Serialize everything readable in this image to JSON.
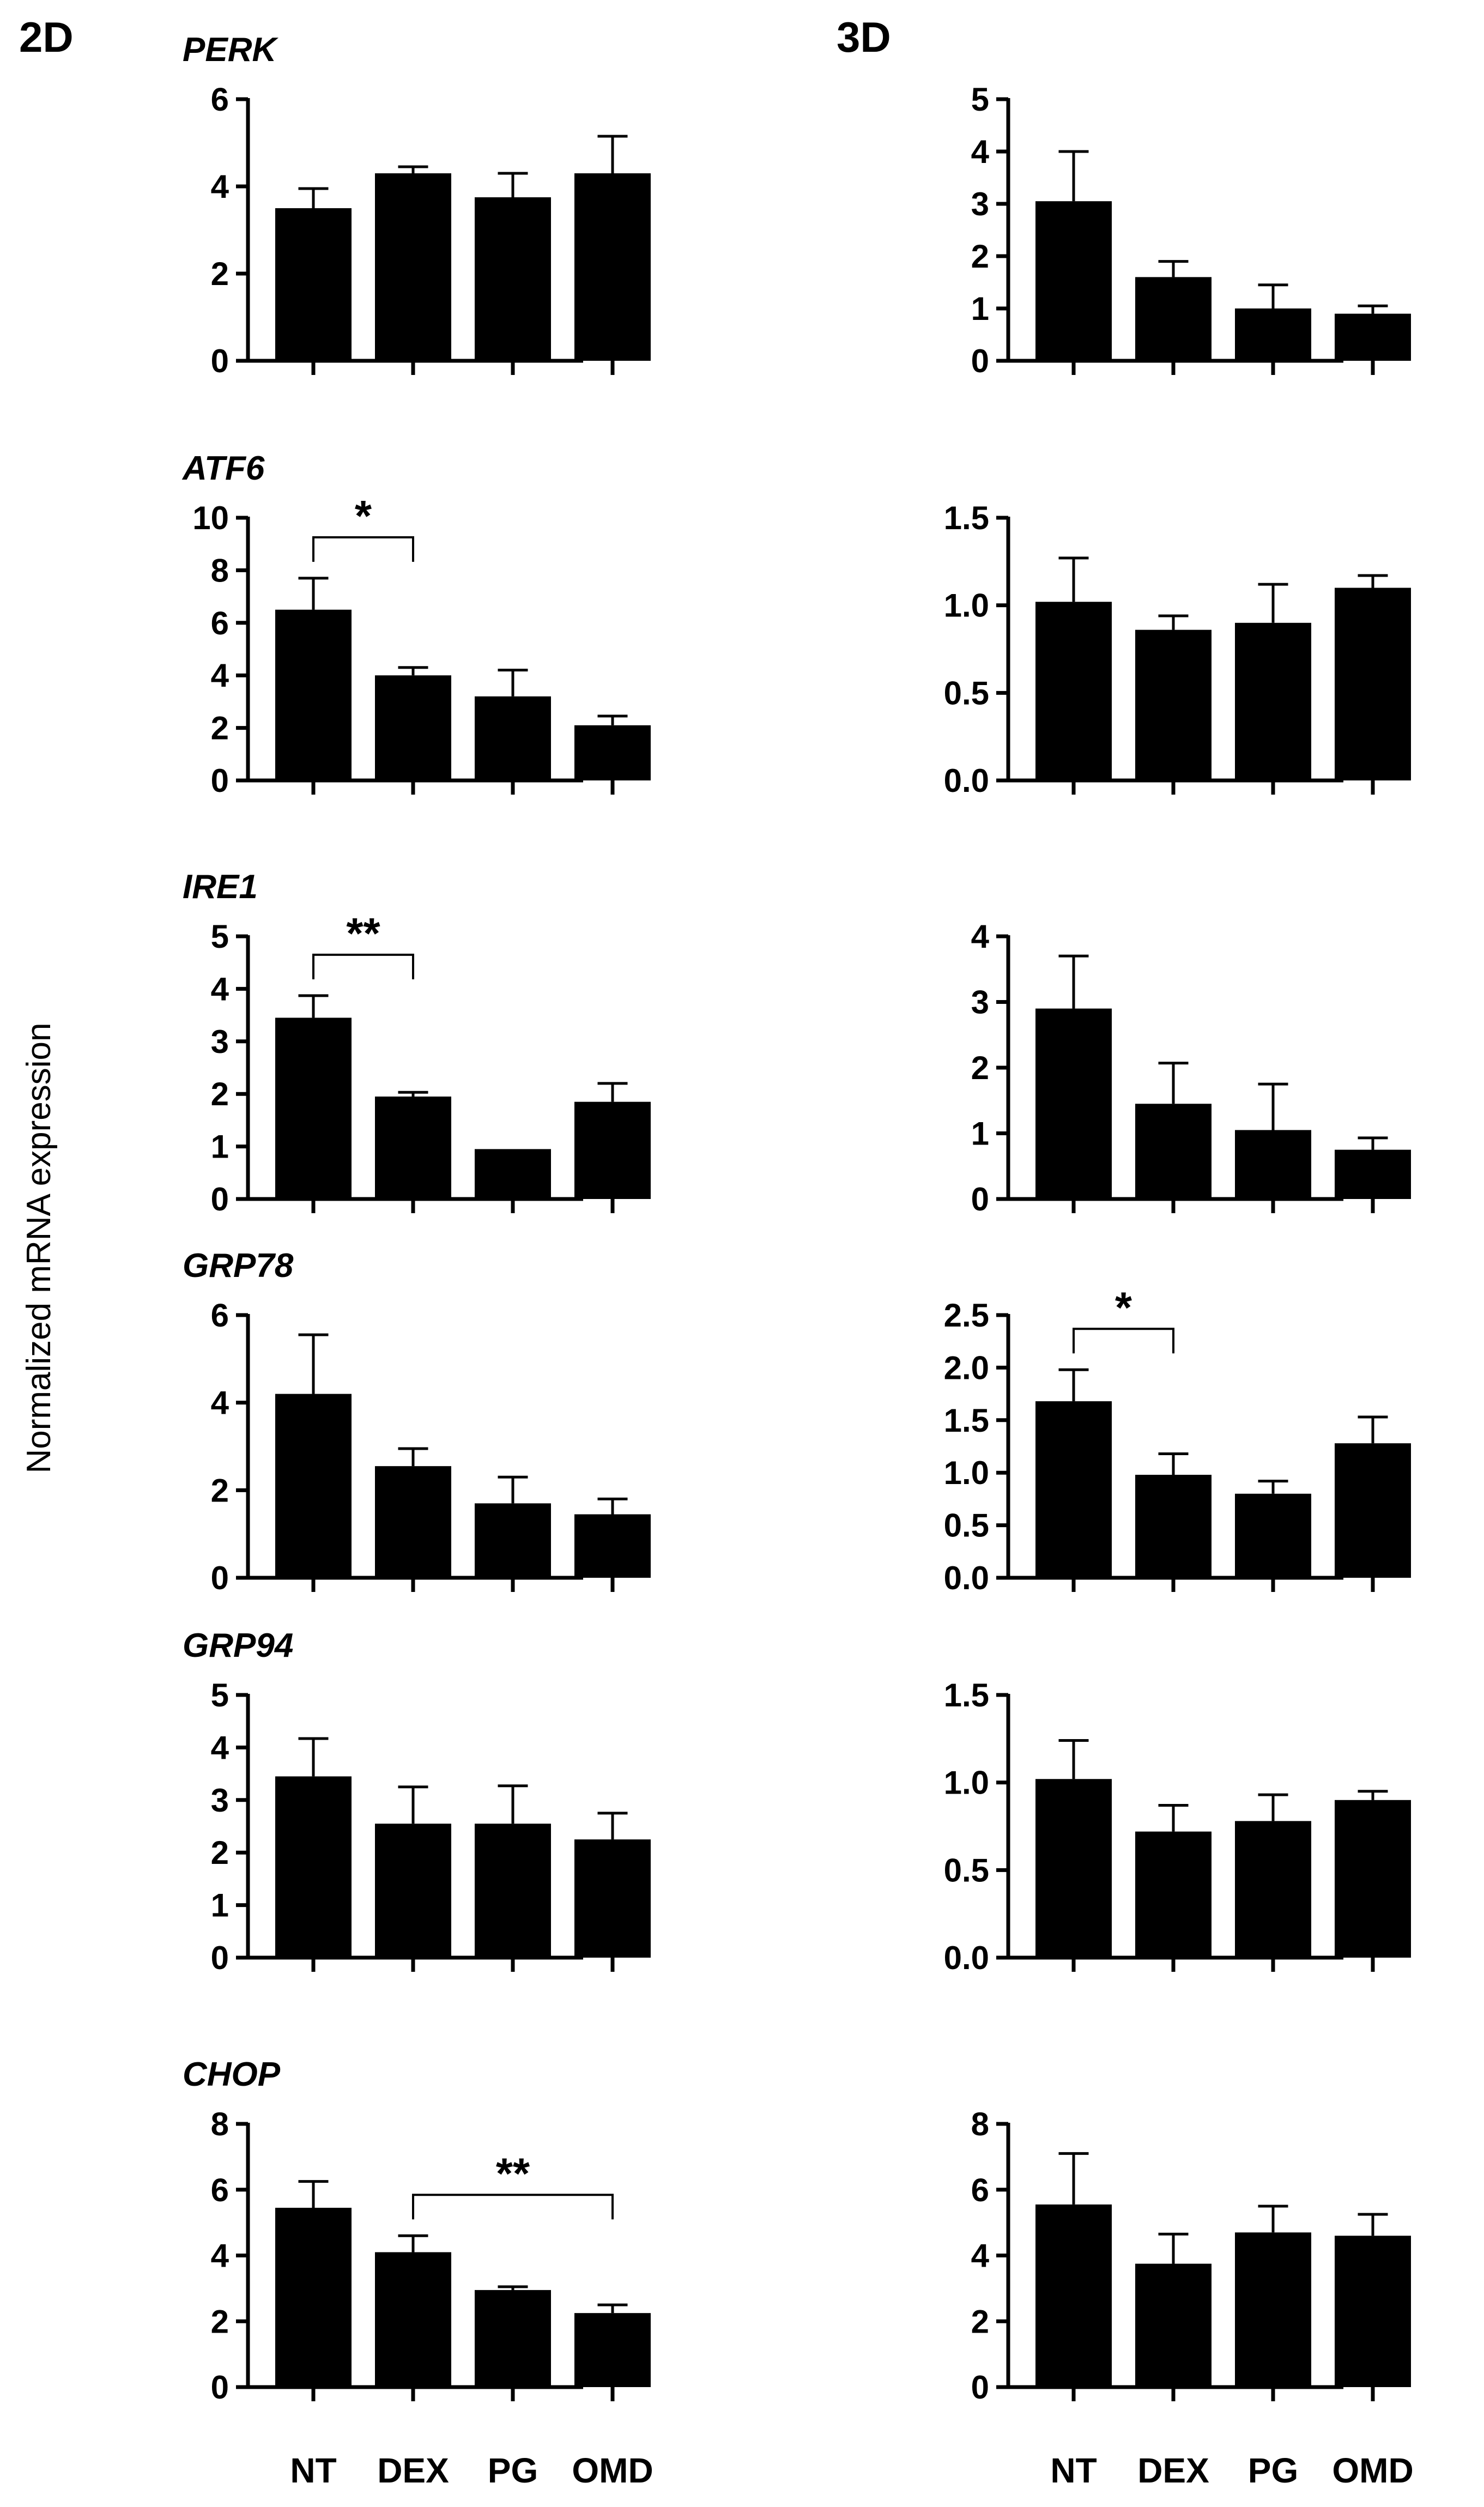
{
  "figure": {
    "left_heading": "2D",
    "right_heading": "3D",
    "ylabel": "Normalized mRNA expression",
    "categories": [
      "NT",
      "DEX",
      "PG",
      "OMD"
    ]
  },
  "chart_data": [
    {
      "type": "bar",
      "condition": "2D",
      "gene": "PERK",
      "categories": [
        "NT",
        "DEX",
        "PG",
        "OMD"
      ],
      "values": [
        3.5,
        4.3,
        3.75,
        4.3
      ],
      "errors": [
        0.45,
        0.15,
        0.55,
        0.85
      ],
      "ylim": [
        0,
        6
      ],
      "ticks": [
        "0",
        "2",
        "4",
        "6"
      ],
      "significance": []
    },
    {
      "type": "bar",
      "condition": "3D",
      "gene": "",
      "categories": [
        "NT",
        "DEX",
        "PG",
        "OMD"
      ],
      "values": [
        3.05,
        1.6,
        1.0,
        0.9
      ],
      "errors": [
        0.95,
        0.3,
        0.45,
        0.15
      ],
      "ylim": [
        0,
        5
      ],
      "ticks": [
        "0",
        "1",
        "2",
        "3",
        "4",
        "5"
      ],
      "significance": []
    },
    {
      "type": "bar",
      "condition": "2D",
      "gene": "ATF6",
      "categories": [
        "NT",
        "DEX",
        "PG",
        "OMD"
      ],
      "values": [
        6.5,
        4.0,
        3.2,
        2.1
      ],
      "errors": [
        1.2,
        0.3,
        1.0,
        0.35
      ],
      "ylim": [
        0,
        10
      ],
      "ticks": [
        "0",
        "2",
        "4",
        "6",
        "8",
        "10"
      ],
      "significance": [
        {
          "from": 0,
          "to": 1,
          "label": "*"
        }
      ]
    },
    {
      "type": "bar",
      "condition": "3D",
      "gene": "",
      "categories": [
        "NT",
        "DEX",
        "PG",
        "OMD"
      ],
      "values": [
        1.02,
        0.86,
        0.9,
        1.1
      ],
      "errors": [
        0.25,
        0.08,
        0.22,
        0.07
      ],
      "ylim": [
        0,
        1.5
      ],
      "ticks": [
        "0.0",
        "0.5",
        "1.0",
        "1.5"
      ],
      "significance": []
    },
    {
      "type": "bar",
      "condition": "2D",
      "gene": "IRE1",
      "categories": [
        "NT",
        "DEX",
        "PG",
        "OMD"
      ],
      "values": [
        3.45,
        1.95,
        0.95,
        1.85
      ],
      "errors": [
        0.42,
        0.08,
        0.0,
        0.35
      ],
      "ylim": [
        0,
        5
      ],
      "ticks": [
        "0",
        "1",
        "2",
        "3",
        "4",
        "5"
      ],
      "significance": [
        {
          "from": 0,
          "to": 1,
          "label": "**"
        }
      ]
    },
    {
      "type": "bar",
      "condition": "3D",
      "gene": "",
      "categories": [
        "NT",
        "DEX",
        "PG",
        "OMD"
      ],
      "values": [
        2.9,
        1.45,
        1.05,
        0.75
      ],
      "errors": [
        0.8,
        0.62,
        0.7,
        0.18
      ],
      "ylim": [
        0,
        4
      ],
      "ticks": [
        "0",
        "1",
        "2",
        "3",
        "4"
      ],
      "significance": []
    },
    {
      "type": "bar",
      "condition": "2D",
      "gene": "GRP78",
      "categories": [
        "NT",
        "DEX",
        "PG",
        "OMD"
      ],
      "values": [
        4.2,
        2.55,
        1.7,
        1.45
      ],
      "errors": [
        1.35,
        0.4,
        0.6,
        0.35
      ],
      "ylim": [
        0,
        6
      ],
      "ticks": [
        "0",
        "2",
        "4",
        "6"
      ],
      "significance": []
    },
    {
      "type": "bar",
      "condition": "3D",
      "gene": "",
      "categories": [
        "NT",
        "DEX",
        "PG",
        "OMD"
      ],
      "values": [
        1.68,
        0.98,
        0.8,
        1.28
      ],
      "errors": [
        0.3,
        0.2,
        0.12,
        0.25
      ],
      "ylim": [
        0,
        2.5
      ],
      "ticks": [
        "0.0",
        "0.5",
        "1.0",
        "1.5",
        "2.0",
        "2.5"
      ],
      "significance": [
        {
          "from": 0,
          "to": 1,
          "label": "*"
        }
      ]
    },
    {
      "type": "bar",
      "condition": "2D",
      "gene": "GRP94",
      "categories": [
        "NT",
        "DEX",
        "PG",
        "OMD"
      ],
      "values": [
        3.45,
        2.55,
        2.55,
        2.25
      ],
      "errors": [
        0.72,
        0.7,
        0.72,
        0.5
      ],
      "ylim": [
        0,
        5
      ],
      "ticks": [
        "0",
        "1",
        "2",
        "3",
        "4",
        "5"
      ],
      "significance": []
    },
    {
      "type": "bar",
      "condition": "3D",
      "gene": "",
      "categories": [
        "NT",
        "DEX",
        "PG",
        "OMD"
      ],
      "values": [
        1.02,
        0.72,
        0.78,
        0.9
      ],
      "errors": [
        0.22,
        0.15,
        0.15,
        0.05
      ],
      "ylim": [
        0,
        1.5
      ],
      "ticks": [
        "0.0",
        "0.5",
        "1.0",
        "1.5"
      ],
      "significance": []
    },
    {
      "type": "bar",
      "condition": "2D",
      "gene": "CHOP",
      "categories": [
        "NT",
        "DEX",
        "PG",
        "OMD"
      ],
      "values": [
        5.45,
        4.1,
        2.95,
        2.25
      ],
      "errors": [
        0.8,
        0.5,
        0.1,
        0.25
      ],
      "ylim": [
        0,
        8
      ],
      "ticks": [
        "0",
        "2",
        "4",
        "6",
        "8"
      ],
      "significance": [
        {
          "from": 1,
          "to": 3,
          "label": "**"
        }
      ]
    },
    {
      "type": "bar",
      "condition": "3D",
      "gene": "",
      "categories": [
        "NT",
        "DEX",
        "PG",
        "OMD"
      ],
      "values": [
        5.55,
        3.75,
        4.7,
        4.6
      ],
      "errors": [
        1.55,
        0.9,
        0.8,
        0.65
      ],
      "ylim": [
        0,
        8
      ],
      "ticks": [
        "0",
        "2",
        "4",
        "6",
        "8"
      ],
      "significance": []
    }
  ],
  "colors": {
    "bar": "#000000",
    "axis": "#000000",
    "background": "#ffffff"
  }
}
